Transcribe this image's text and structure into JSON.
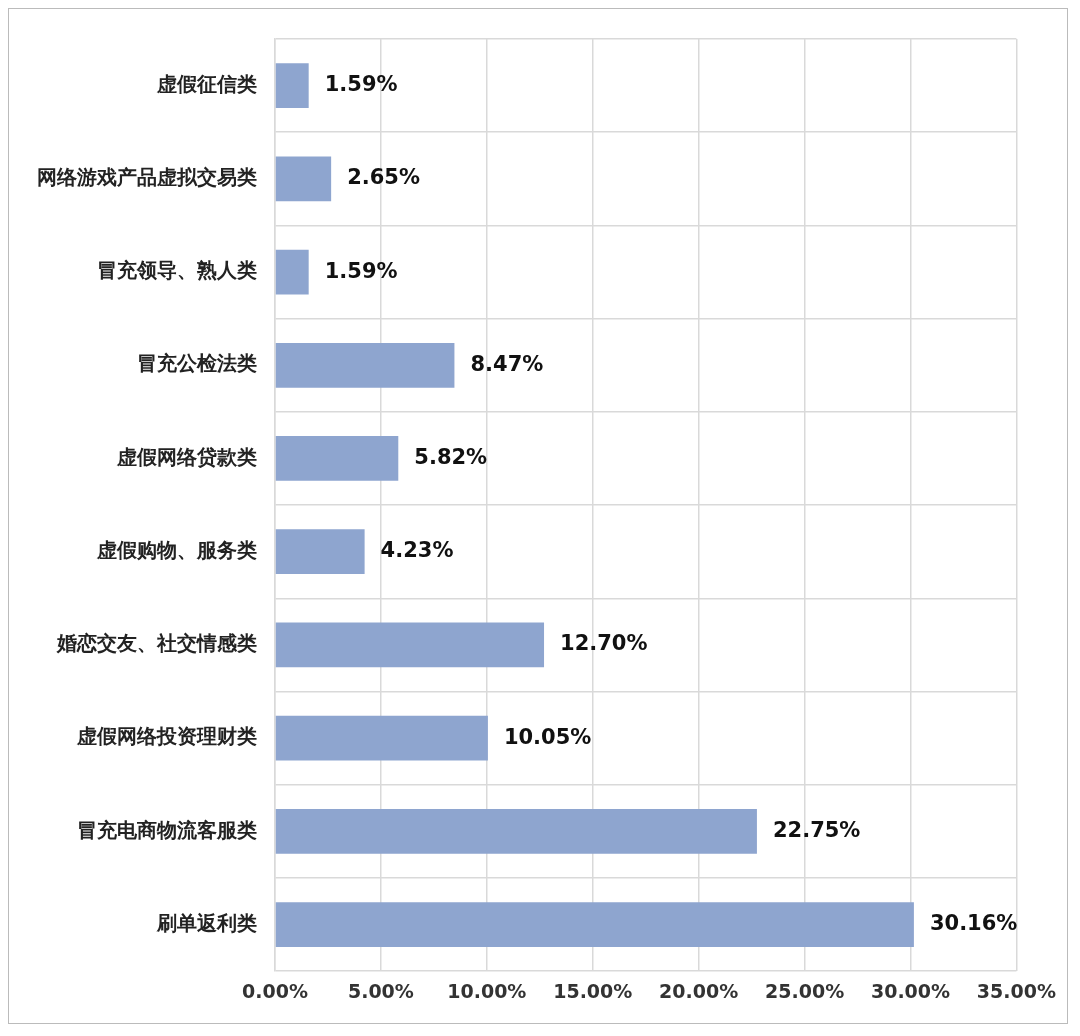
{
  "chart_data": {
    "type": "bar",
    "orientation": "horizontal",
    "categories": [
      "虚假征信类",
      "网络游戏产品虚拟交易类",
      "冒充领导、熟人类",
      "冒充公检法类",
      "虚假网络贷款类",
      "虚假购物、服务类",
      "婚恋交友、社交情感类",
      "虚假网络投资理财类",
      "冒充电商物流客服类",
      "刷单返利类"
    ],
    "values": [
      1.59,
      2.65,
      1.59,
      8.47,
      5.82,
      4.23,
      12.7,
      10.05,
      22.75,
      30.16
    ],
    "value_labels": [
      "1.59%",
      "2.65%",
      "1.59%",
      "8.47%",
      "5.82%",
      "4.23%",
      "12.70%",
      "10.05%",
      "22.75%",
      "30.16%"
    ],
    "color": "#8ea5cf",
    "xlim": [
      0,
      35
    ],
    "xticks": [
      {
        "value": 0,
        "label": "0.00%"
      },
      {
        "value": 5,
        "label": "5.00%"
      },
      {
        "value": 10,
        "label": "10.00%"
      },
      {
        "value": 15,
        "label": "15.00%"
      },
      {
        "value": 20,
        "label": "20.00%"
      },
      {
        "value": 25,
        "label": "25.00%"
      },
      {
        "value": 30,
        "label": "30.00%"
      },
      {
        "value": 35,
        "label": "35.00%"
      }
    ],
    "grid": true
  }
}
